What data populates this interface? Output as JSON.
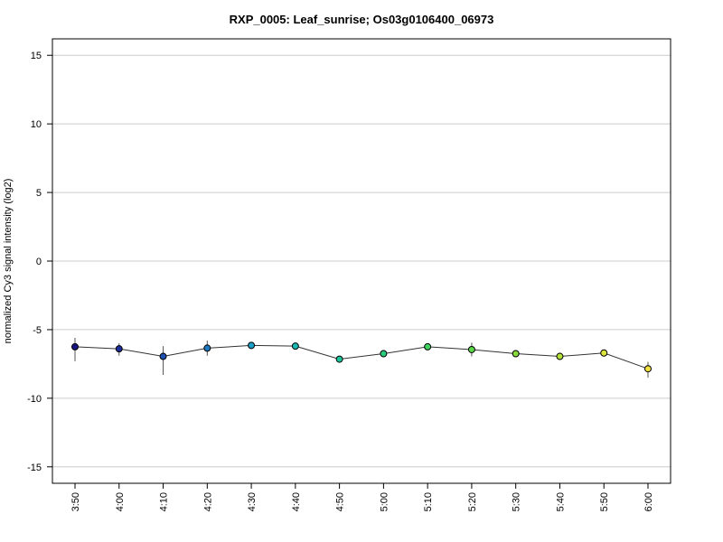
{
  "chart_data": {
    "type": "line",
    "title": "RXP_0005: Leaf_sunrise; Os03g0106400_06973",
    "xlabel": "",
    "ylabel": "normalized Cy3 signal intensity (log2)",
    "ylim": [
      -16.2,
      16.2
    ],
    "y_ticks": [
      -15,
      -10,
      -5,
      0,
      5,
      10,
      15
    ],
    "y_tick_labels": [
      "-15",
      "-10",
      "-5",
      "0",
      "5",
      "10",
      "15"
    ],
    "grid": "horizontal",
    "categories": [
      "3:50",
      "4:00",
      "4:10",
      "4:20",
      "4:30",
      "4:40",
      "4:50",
      "5:00",
      "5:10",
      "5:20",
      "5:30",
      "5:40",
      "5:50",
      "6:00"
    ],
    "series": [
      {
        "values": [
          -6.25,
          -6.4,
          -6.95,
          -6.35,
          -6.15,
          -6.2,
          -7.15,
          -6.75,
          -6.25,
          -6.45,
          -6.75,
          -6.95,
          -6.7,
          -7.85
        ],
        "error_low": [
          -7.3,
          -6.9,
          -8.3,
          -6.9,
          -6.3,
          -6.35,
          -7.3,
          -6.9,
          -6.4,
          -6.95,
          -6.9,
          -7.1,
          -6.85,
          -8.5
        ],
        "error_high": [
          -5.6,
          -6.0,
          -6.2,
          -5.8,
          -6.0,
          -6.05,
          -7.0,
          -6.6,
          -6.1,
          -5.95,
          -6.6,
          -6.8,
          -6.55,
          -7.35
        ],
        "point_colors": [
          "#1a1580",
          "#1d2f9a",
          "#2050b0",
          "#1f7ac0",
          "#1aa0c8",
          "#18b8b0",
          "#1ac49a",
          "#2acc80",
          "#3ed460",
          "#5ad848",
          "#88dc3c",
          "#b4e03a",
          "#dce43e",
          "#f0e040"
        ]
      }
    ]
  }
}
